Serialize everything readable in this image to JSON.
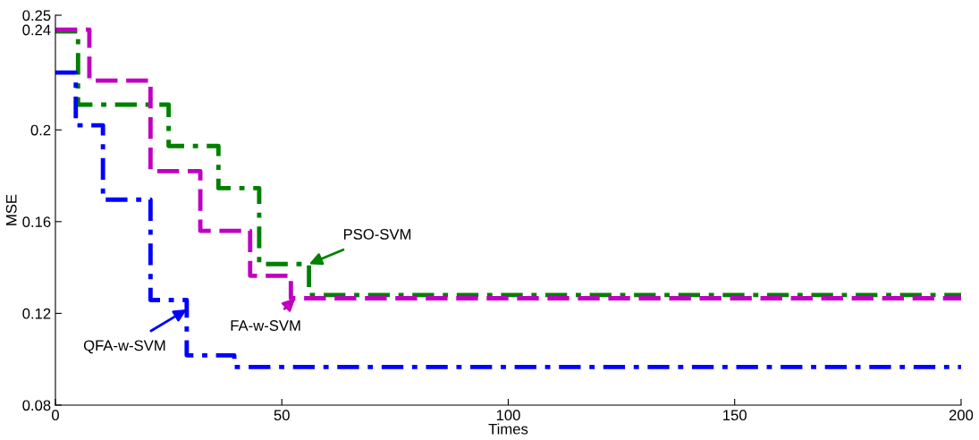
{
  "chart_data": {
    "type": "step",
    "xlabel": "Times",
    "ylabel": "MSE",
    "xlim": [
      0,
      200
    ],
    "xticks": [
      0,
      50,
      100,
      150,
      200
    ],
    "ylim": [
      0.08,
      0.25
    ],
    "yticks": [
      0.08,
      0.12,
      0.16,
      0.2,
      {
        "value": 0.2437,
        "label": "0.24"
      },
      0.25
    ],
    "grid": false,
    "legend": "center",
    "series": [
      {
        "name": "PSO-SVM",
        "color": "#008000",
        "line_style": "dashdot",
        "x": [
          0,
          5,
          25,
          36,
          45,
          56,
          200
        ],
        "values": [
          0.243,
          0.211,
          0.193,
          0.1746,
          0.1415,
          0.128,
          0.128
        ]
      },
      {
        "name": "FA-w-SVM",
        "color": "#c000c0",
        "line_style": "dashed",
        "x": [
          0,
          7.5,
          21,
          32,
          43,
          52,
          200
        ],
        "values": [
          0.2437,
          0.2215,
          0.182,
          0.156,
          0.1364,
          0.1266,
          0.1266
        ]
      },
      {
        "name": "QFA-w-SVM",
        "color": "#0000ff",
        "line_style": "dashdot",
        "x": [
          0,
          4.5,
          10.5,
          21,
          29,
          39.5,
          200
        ],
        "values": [
          0.225,
          0.202,
          0.1696,
          0.1258,
          0.1017,
          0.0966,
          0.0966
        ]
      }
    ]
  }
}
